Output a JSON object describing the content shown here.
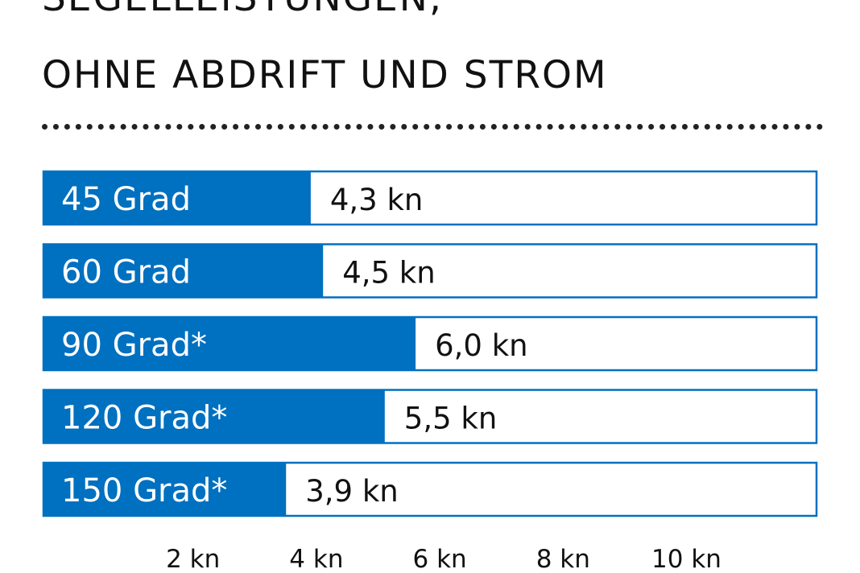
{
  "chart_data": {
    "type": "bar",
    "orientation": "horizontal",
    "title_lines": [
      "SEGELLEISTUNGEN,",
      "OHNE ABDRIFT UND STROM"
    ],
    "categories": [
      "45 Grad",
      "60 Grad",
      "90 Grad*",
      "120 Grad*",
      "150 Grad*"
    ],
    "values": [
      4.3,
      4.5,
      6.0,
      5.5,
      3.9
    ],
    "value_labels": [
      "4,3 kn",
      "4,5 kn",
      "6,0 kn",
      "5,5 kn",
      "3,9 kn"
    ],
    "unit": "kn",
    "xlim": [
      0,
      12
    ],
    "x_ticks": [
      2,
      4,
      6,
      8,
      10
    ],
    "x_tick_labels": [
      "2 kn",
      "4 kn",
      "6 kn",
      "8 kn",
      "10 kn"
    ],
    "grid": false,
    "legend": "none",
    "colors": {
      "bar_fill": "#0070c0",
      "bar_outline": "#0070c0",
      "category_text": "#ffffff",
      "value_text": "#111111"
    }
  }
}
